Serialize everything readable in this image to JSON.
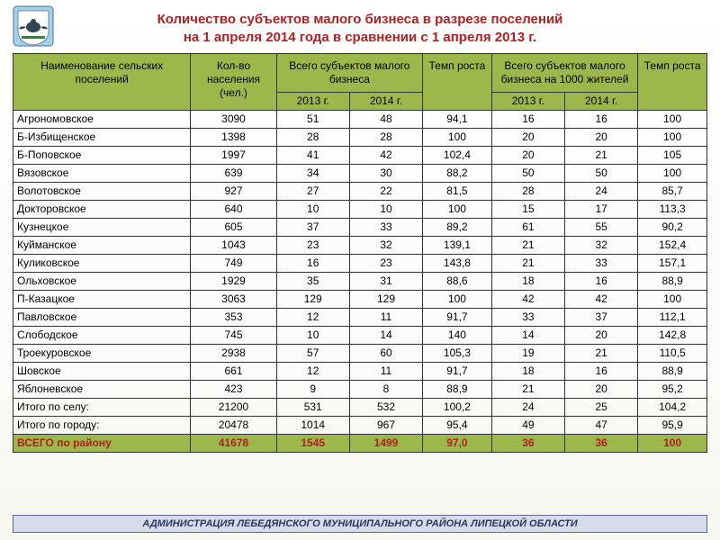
{
  "title_line1": "Количество  субъектов малого бизнеса в разрезе  поселений",
  "title_line2": "на 1 апреля 2014 года в сравнении с 1 апреля 2013 г.",
  "footer": "АДМИНИСТРАЦИЯ ЛЕБЕДЯНСКОГО МУНИЦИПАЛЬНОГО РАЙОНА ЛИПЕЦКОЙ ОБЛАСТИ",
  "logo": {
    "bg": "#9fd4e8",
    "shield": "#ffffff",
    "bird": "#334455"
  },
  "table": {
    "header_bg": "#9cb84a",
    "total_text_color": "#b02020",
    "columns": {
      "name": "Наименование сельских поселений",
      "pop": "Кол-во населения (чел.)",
      "subj": "Всего субъектов малого бизнеса",
      "growth1": "Темп роста",
      "per1000": "Всего субъектов малого бизнеса на 1000 жителей",
      "growth2": "Темп роста",
      "y2013": "2013 г.",
      "y2014": "2014 г."
    },
    "rows": [
      {
        "n": "Агрономовское",
        "p": "3090",
        "a": "51",
        "b": "48",
        "g1": "94,1",
        "c": "16",
        "d": "16",
        "g2": "100"
      },
      {
        "n": "Б-Избищенское",
        "p": "1398",
        "a": "28",
        "b": "28",
        "g1": "100",
        "c": "20",
        "d": "20",
        "g2": "100"
      },
      {
        "n": "Б-Поповское",
        "p": "1997",
        "a": "41",
        "b": "42",
        "g1": "102,4",
        "c": "20",
        "d": "21",
        "g2": "105"
      },
      {
        "n": "Вязовское",
        "p": "639",
        "a": "34",
        "b": "30",
        "g1": "88,2",
        "c": "50",
        "d": "50",
        "g2": "100"
      },
      {
        "n": "Волотовское",
        "p": "927",
        "a": "27",
        "b": "22",
        "g1": "81,5",
        "c": "28",
        "d": "24",
        "g2": "85,7"
      },
      {
        "n": "Докторовское",
        "p": "640",
        "a": "10",
        "b": "10",
        "g1": "100",
        "c": "15",
        "d": "17",
        "g2": "113,3"
      },
      {
        "n": "Кузнецкое",
        "p": "605",
        "a": "37",
        "b": "33",
        "g1": "89,2",
        "c": "61",
        "d": "55",
        "g2": "90,2"
      },
      {
        "n": "Куйманское",
        "p": "1043",
        "a": "23",
        "b": "32",
        "g1": "139,1",
        "c": "21",
        "d": "32",
        "g2": "152,4"
      },
      {
        "n": "Куликовское",
        "p": "749",
        "a": "16",
        "b": "23",
        "g1": "143,8",
        "c": "21",
        "d": "33",
        "g2": "157,1"
      },
      {
        "n": "Ольховское",
        "p": "1929",
        "a": "35",
        "b": "31",
        "g1": "88,6",
        "c": "18",
        "d": "16",
        "g2": "88,9"
      },
      {
        "n": "П-Казацкое",
        "p": "3063",
        "a": "129",
        "b": "129",
        "g1": "100",
        "c": "42",
        "d": "42",
        "g2": "100"
      },
      {
        "n": "Павловское",
        "p": "353",
        "a": "12",
        "b": "11",
        "g1": "91,7",
        "c": "33",
        "d": "37",
        "g2": "112,1"
      },
      {
        "n": "Слободское",
        "p": "745",
        "a": "10",
        "b": "14",
        "g1": "140",
        "c": "14",
        "d": "20",
        "g2": "142,8"
      },
      {
        "n": "Троекуровское",
        "p": "2938",
        "a": "57",
        "b": "60",
        "g1": "105,3",
        "c": "19",
        "d": "21",
        "g2": "110,5"
      },
      {
        "n": "Шовское",
        "p": "661",
        "a": "12",
        "b": "11",
        "g1": "91,7",
        "c": "18",
        "d": "16",
        "g2": "88,9"
      },
      {
        "n": "Яблоневское",
        "p": "423",
        "a": "9",
        "b": "8",
        "g1": "88,9",
        "c": "21",
        "d": "20",
        "g2": "95,2"
      },
      {
        "n": "Итого по селу:",
        "p": "21200",
        "a": "531",
        "b": "532",
        "g1": "100,2",
        "c": "24",
        "d": "25",
        "g2": "104,2"
      },
      {
        "n": "Итого по городу:",
        "p": "20478",
        "a": "1014",
        "b": "967",
        "g1": "95,4",
        "c": "49",
        "d": "47",
        "g2": "95,9"
      }
    ],
    "total": {
      "n": "ВСЕГО по району",
      "p": "41678",
      "a": "1545",
      "b": "1499",
      "g1": "97,0",
      "c": "36",
      "d": "36",
      "g2": "100"
    }
  }
}
